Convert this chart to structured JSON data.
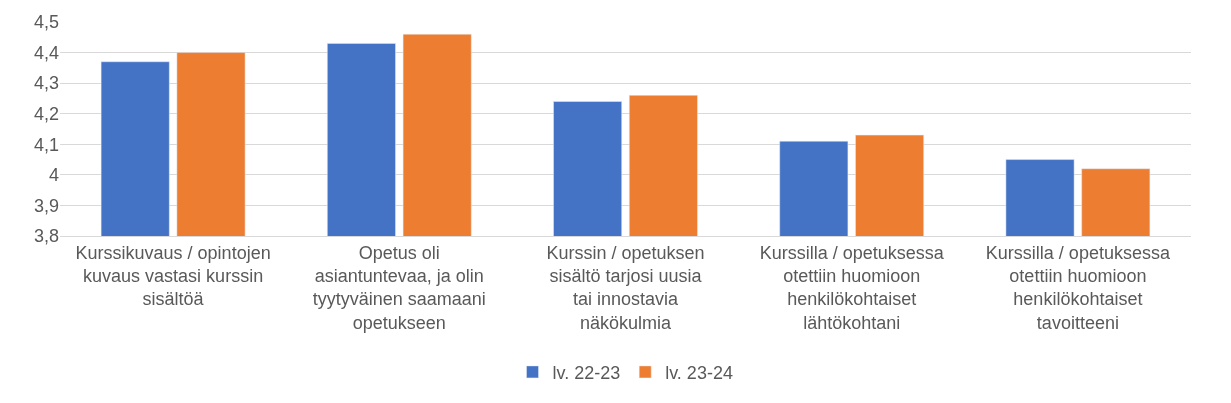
{
  "chart_data": {
    "type": "bar",
    "categories": [
      "Kurssikuvaus / opintojen kuvaus vastasi kurssin sisältöä",
      "Opetus oli asiantuntevaa, ja olin tyytyväinen saamaani opetukseen",
      "Kurssin / opetuksen sisältö tarjosi uusia tai innostavia näkökulmia",
      "Kurssilla / opetuksessa otettiin huomioon henkilökohtaiset lähtökohtani",
      "Kurssilla / opetuksessa otettiin huomioon henkilökohtaiset tavoitteeni"
    ],
    "series": [
      {
        "name": "lv. 22-23",
        "color": "#4472c4",
        "values": [
          4.37,
          4.43,
          4.24,
          4.11,
          4.05
        ]
      },
      {
        "name": "lv. 23-24",
        "color": "#ed7d31",
        "values": [
          4.4,
          4.46,
          4.26,
          4.13,
          4.02
        ]
      }
    ],
    "ylim": [
      3.8,
      4.5
    ],
    "yticks": [
      {
        "value": 3.8,
        "label": "3,8"
      },
      {
        "value": 3.9,
        "label": "3,9"
      },
      {
        "value": 4.0,
        "label": "4"
      },
      {
        "value": 4.1,
        "label": "4,1"
      },
      {
        "value": 4.2,
        "label": "4,2"
      },
      {
        "value": 4.3,
        "label": "4,3"
      },
      {
        "value": 4.4,
        "label": "4,4"
      },
      {
        "value": 4.5,
        "label": "4,5"
      }
    ],
    "grid": "y",
    "legend": "bottom"
  }
}
